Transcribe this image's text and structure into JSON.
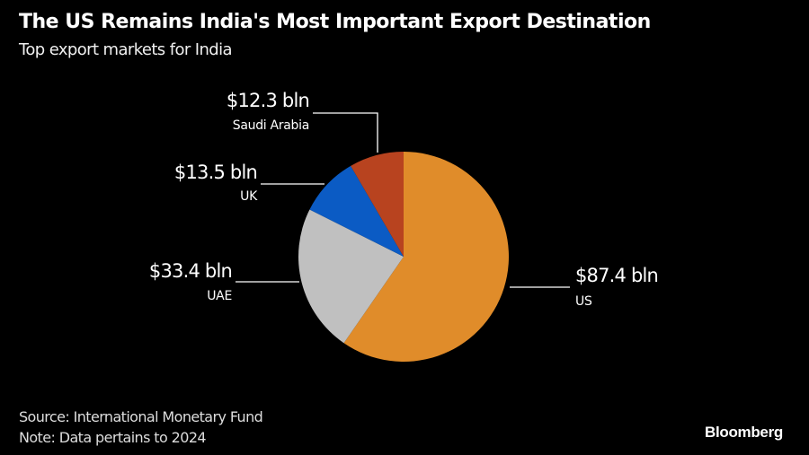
{
  "header": {
    "title": "The US Remains India's Most Important Export Destination",
    "subtitle": "Top export markets for India"
  },
  "footer": {
    "source": "Source: International Monetary Fund",
    "note": "Note: Data pertains to 2024",
    "brand": "Bloomberg"
  },
  "chart_data": {
    "type": "pie",
    "title": "The US Remains India's Most Important Export Destination",
    "subtitle": "Top export markets for India",
    "unit": "USD billion",
    "slices": [
      {
        "name": "US",
        "value": 87.4,
        "label": "$87.4 bln",
        "color": "#E08C2A"
      },
      {
        "name": "UAE",
        "value": 33.4,
        "label": "$33.4 bln",
        "color": "#C0C0C0"
      },
      {
        "name": "UK",
        "value": 13.5,
        "label": "$13.5 bln",
        "color": "#0B5BC4"
      },
      {
        "name": "Saudi Arabia",
        "value": 12.3,
        "label": "$12.3 bln",
        "color": "#B8431F"
      }
    ],
    "start_angle": "12 o'clock",
    "direction": "clockwise",
    "legend": "none (direct labels)"
  }
}
